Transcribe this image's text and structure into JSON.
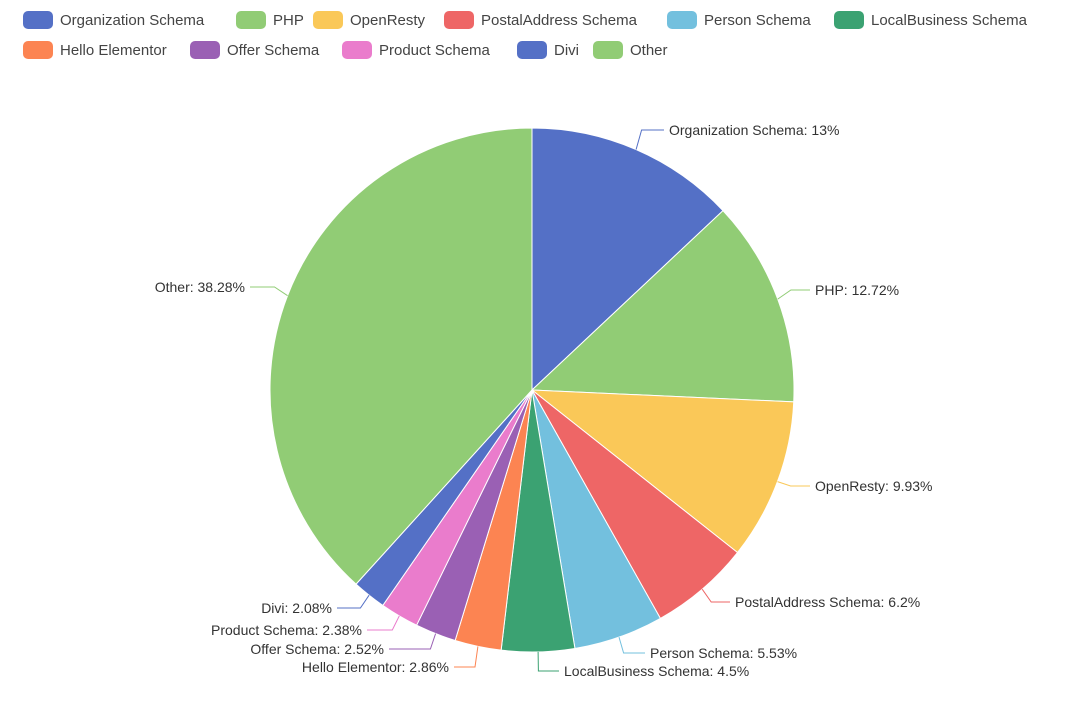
{
  "chart_data": {
    "type": "pie",
    "title": "",
    "legend_position": "top",
    "series": [
      {
        "name": "Organization Schema",
        "value": 13,
        "label": "Organization Schema: 13%",
        "color": "#5470c6"
      },
      {
        "name": "PHP",
        "value": 12.72,
        "label": "PHP: 12.72%",
        "color": "#91cc75"
      },
      {
        "name": "OpenResty",
        "value": 9.93,
        "label": "OpenResty: 9.93%",
        "color": "#fac858"
      },
      {
        "name": "PostalAddress Schema",
        "value": 6.2,
        "label": "PostalAddress Schema: 6.2%",
        "color": "#ee6666"
      },
      {
        "name": "Person Schema",
        "value": 5.53,
        "label": "Person Schema: 5.53%",
        "color": "#73c0de"
      },
      {
        "name": "LocalBusiness Schema",
        "value": 4.5,
        "label": "LocalBusiness Schema: 4.5%",
        "color": "#3ba272"
      },
      {
        "name": "Hello Elementor",
        "value": 2.86,
        "label": "Hello Elementor: 2.86%",
        "color": "#fc8452"
      },
      {
        "name": "Offer Schema",
        "value": 2.52,
        "label": "Offer Schema: 2.52%",
        "color": "#9a60b4"
      },
      {
        "name": "Product Schema",
        "value": 2.38,
        "label": "Product Schema: 2.38%",
        "color": "#ea7ccc"
      },
      {
        "name": "Divi",
        "value": 2.08,
        "label": "Divi: 2.08%",
        "color": "#5470c6"
      },
      {
        "name": "Other",
        "value": 38.28,
        "label": "Other: 38.28%",
        "color": "#91cc75"
      }
    ]
  }
}
